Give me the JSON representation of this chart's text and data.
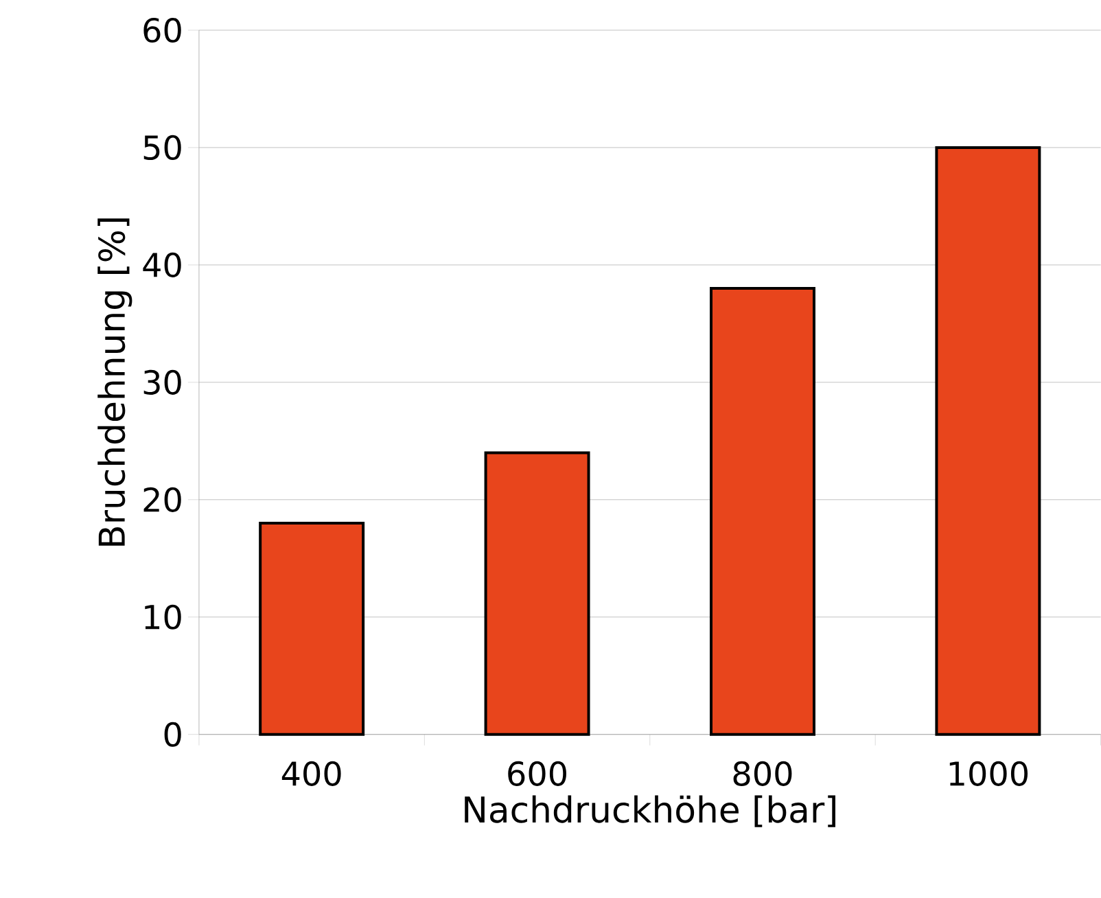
{
  "chart_data": {
    "type": "bar",
    "xlabel": "Nachdruckhöhe [bar]",
    "ylabel": "Bruchdehnung [%]",
    "categories": [
      "400",
      "600",
      "800",
      "1000"
    ],
    "values": [
      18,
      24,
      38,
      50
    ],
    "color": "#e8451c",
    "ylim": [
      0,
      60
    ],
    "yticks": [
      0,
      10,
      20,
      30,
      40,
      50,
      60
    ],
    "grid": "y"
  }
}
